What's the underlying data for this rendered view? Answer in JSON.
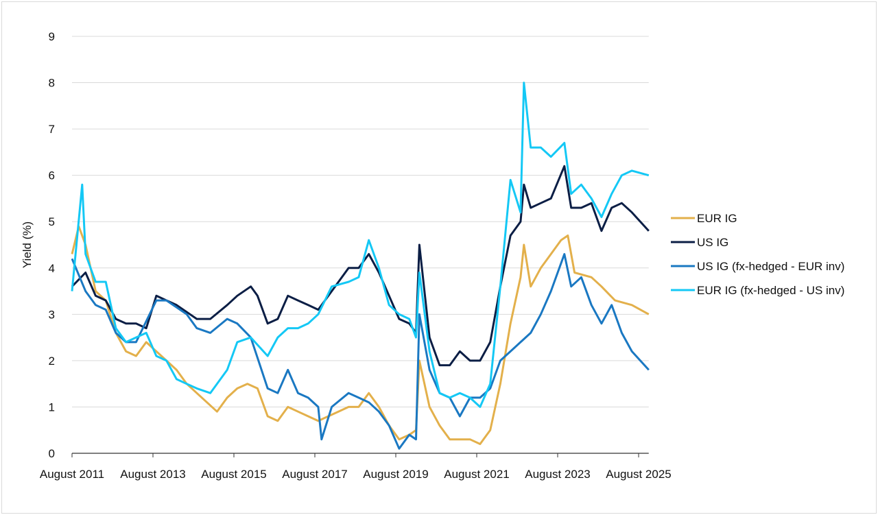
{
  "chart_data": {
    "type": "line",
    "title": "",
    "xlabel": "",
    "ylabel": "Yield (%)",
    "ylim": [
      0,
      9
    ],
    "yticks": [
      "0",
      "1",
      "2",
      "3",
      "4",
      "5",
      "6",
      "7",
      "8",
      "9"
    ],
    "xticks": [
      {
        "date": "2011-08",
        "label": "August 2011"
      },
      {
        "date": "2013-08",
        "label": "August 2013"
      },
      {
        "date": "2015-08",
        "label": "August 2015"
      },
      {
        "date": "2017-08",
        "label": "August 2017"
      },
      {
        "date": "2019-08",
        "label": "August 2019"
      },
      {
        "date": "2021-08",
        "label": "August 2021"
      },
      {
        "date": "2023-08",
        "label": "August 2023"
      },
      {
        "date": "2025-08",
        "label": "August 2025"
      }
    ],
    "xlim": [
      "2011-08",
      "2025-11"
    ],
    "grid": "horizontal",
    "legend": "right",
    "series": [
      {
        "name": "EUR IG",
        "color": "#E3B04B",
        "points": [
          [
            "2011-08",
            4.3
          ],
          [
            "2011-10",
            4.9
          ],
          [
            "2011-12",
            4.5
          ],
          [
            "2012-03",
            3.5
          ],
          [
            "2012-06",
            3.3
          ],
          [
            "2012-09",
            2.6
          ],
          [
            "2012-12",
            2.2
          ],
          [
            "2013-03",
            2.1
          ],
          [
            "2013-06",
            2.4
          ],
          [
            "2013-09",
            2.2
          ],
          [
            "2013-12",
            2.0
          ],
          [
            "2014-03",
            1.8
          ],
          [
            "2014-06",
            1.5
          ],
          [
            "2014-09",
            1.3
          ],
          [
            "2015-03",
            0.9
          ],
          [
            "2015-06",
            1.2
          ],
          [
            "2015-09",
            1.4
          ],
          [
            "2015-12",
            1.5
          ],
          [
            "2016-03",
            1.4
          ],
          [
            "2016-06",
            0.8
          ],
          [
            "2016-09",
            0.7
          ],
          [
            "2016-12",
            1.0
          ],
          [
            "2017-03",
            0.9
          ],
          [
            "2017-06",
            0.8
          ],
          [
            "2017-09",
            0.7
          ],
          [
            "2018-03",
            0.9
          ],
          [
            "2018-06",
            1.0
          ],
          [
            "2018-09",
            1.0
          ],
          [
            "2018-12",
            1.3
          ],
          [
            "2019-03",
            1.0
          ],
          [
            "2019-06",
            0.6
          ],
          [
            "2019-09",
            0.3
          ],
          [
            "2019-12",
            0.4
          ],
          [
            "2020-02",
            0.5
          ],
          [
            "2020-03",
            2.0
          ],
          [
            "2020-06",
            1.0
          ],
          [
            "2020-09",
            0.6
          ],
          [
            "2020-12",
            0.3
          ],
          [
            "2021-03",
            0.3
          ],
          [
            "2021-06",
            0.3
          ],
          [
            "2021-09",
            0.2
          ],
          [
            "2021-12",
            0.5
          ],
          [
            "2022-03",
            1.5
          ],
          [
            "2022-06",
            2.8
          ],
          [
            "2022-09",
            3.8
          ],
          [
            "2022-10",
            4.5
          ],
          [
            "2022-12",
            3.6
          ],
          [
            "2023-03",
            4.0
          ],
          [
            "2023-06",
            4.3
          ],
          [
            "2023-09",
            4.6
          ],
          [
            "2023-11",
            4.7
          ],
          [
            "2024-01",
            3.9
          ],
          [
            "2024-06",
            3.8
          ],
          [
            "2024-09",
            3.6
          ],
          [
            "2025-01",
            3.3
          ],
          [
            "2025-06",
            3.2
          ],
          [
            "2025-11",
            3.0
          ]
        ]
      },
      {
        "name": "US IG",
        "color": "#0B1E45",
        "points": [
          [
            "2011-08",
            3.6
          ],
          [
            "2011-12",
            3.9
          ],
          [
            "2012-03",
            3.4
          ],
          [
            "2012-06",
            3.3
          ],
          [
            "2012-09",
            2.9
          ],
          [
            "2012-12",
            2.8
          ],
          [
            "2013-03",
            2.8
          ],
          [
            "2013-06",
            2.7
          ],
          [
            "2013-09",
            3.4
          ],
          [
            "2013-12",
            3.3
          ],
          [
            "2014-03",
            3.2
          ],
          [
            "2014-09",
            2.9
          ],
          [
            "2015-01",
            2.9
          ],
          [
            "2015-06",
            3.2
          ],
          [
            "2015-09",
            3.4
          ],
          [
            "2016-01",
            3.6
          ],
          [
            "2016-03",
            3.4
          ],
          [
            "2016-06",
            2.8
          ],
          [
            "2016-09",
            2.9
          ],
          [
            "2016-12",
            3.4
          ],
          [
            "2017-03",
            3.3
          ],
          [
            "2017-06",
            3.2
          ],
          [
            "2017-09",
            3.1
          ],
          [
            "2018-01",
            3.5
          ],
          [
            "2018-06",
            4.0
          ],
          [
            "2018-09",
            4.0
          ],
          [
            "2018-12",
            4.3
          ],
          [
            "2019-03",
            3.9
          ],
          [
            "2019-06",
            3.4
          ],
          [
            "2019-09",
            2.9
          ],
          [
            "2019-12",
            2.8
          ],
          [
            "2020-02",
            2.6
          ],
          [
            "2020-03",
            4.5
          ],
          [
            "2020-06",
            2.5
          ],
          [
            "2020-09",
            1.9
          ],
          [
            "2020-12",
            1.9
          ],
          [
            "2021-03",
            2.2
          ],
          [
            "2021-06",
            2.0
          ],
          [
            "2021-09",
            2.0
          ],
          [
            "2021-12",
            2.4
          ],
          [
            "2022-03",
            3.6
          ],
          [
            "2022-06",
            4.7
          ],
          [
            "2022-09",
            5.0
          ],
          [
            "2022-10",
            5.8
          ],
          [
            "2022-12",
            5.3
          ],
          [
            "2023-03",
            5.4
          ],
          [
            "2023-06",
            5.5
          ],
          [
            "2023-10",
            6.2
          ],
          [
            "2023-12",
            5.3
          ],
          [
            "2024-03",
            5.3
          ],
          [
            "2024-06",
            5.4
          ],
          [
            "2024-09",
            4.8
          ],
          [
            "2024-12",
            5.3
          ],
          [
            "2025-03",
            5.4
          ],
          [
            "2025-06",
            5.2
          ],
          [
            "2025-11",
            4.8
          ]
        ]
      },
      {
        "name": "US IG (fx-hedged - EUR inv)",
        "color": "#1A78C2",
        "points": [
          [
            "2011-08",
            4.2
          ],
          [
            "2011-12",
            3.5
          ],
          [
            "2012-03",
            3.2
          ],
          [
            "2012-06",
            3.1
          ],
          [
            "2012-09",
            2.6
          ],
          [
            "2012-12",
            2.4
          ],
          [
            "2013-03",
            2.4
          ],
          [
            "2013-09",
            3.3
          ],
          [
            "2013-12",
            3.3
          ],
          [
            "2014-06",
            3.0
          ],
          [
            "2014-09",
            2.7
          ],
          [
            "2015-01",
            2.6
          ],
          [
            "2015-06",
            2.9
          ],
          [
            "2015-09",
            2.8
          ],
          [
            "2016-01",
            2.5
          ],
          [
            "2016-06",
            1.4
          ],
          [
            "2016-09",
            1.3
          ],
          [
            "2016-12",
            1.8
          ],
          [
            "2017-03",
            1.3
          ],
          [
            "2017-06",
            1.2
          ],
          [
            "2017-09",
            1.0
          ],
          [
            "2017-10",
            0.3
          ],
          [
            "2018-01",
            1.0
          ],
          [
            "2018-06",
            1.3
          ],
          [
            "2018-09",
            1.2
          ],
          [
            "2018-12",
            1.1
          ],
          [
            "2019-03",
            0.9
          ],
          [
            "2019-06",
            0.6
          ],
          [
            "2019-09",
            0.1
          ],
          [
            "2019-12",
            0.4
          ],
          [
            "2020-02",
            0.3
          ],
          [
            "2020-03",
            3.0
          ],
          [
            "2020-06",
            1.8
          ],
          [
            "2020-09",
            1.3
          ],
          [
            "2020-12",
            1.2
          ],
          [
            "2021-03",
            0.8
          ],
          [
            "2021-06",
            1.2
          ],
          [
            "2021-09",
            1.2
          ],
          [
            "2021-12",
            1.4
          ],
          [
            "2022-03",
            2.0
          ],
          [
            "2022-06",
            2.2
          ],
          [
            "2022-09",
            2.4
          ],
          [
            "2022-12",
            2.6
          ],
          [
            "2023-03",
            3.0
          ],
          [
            "2023-06",
            3.5
          ],
          [
            "2023-10",
            4.3
          ],
          [
            "2023-12",
            3.6
          ],
          [
            "2024-03",
            3.8
          ],
          [
            "2024-06",
            3.2
          ],
          [
            "2024-09",
            2.8
          ],
          [
            "2024-12",
            3.2
          ],
          [
            "2025-03",
            2.6
          ],
          [
            "2025-06",
            2.2
          ],
          [
            "2025-11",
            1.8
          ]
        ]
      },
      {
        "name": "EUR IG (fx-hedged - US inv)",
        "color": "#14C8F5",
        "points": [
          [
            "2011-08",
            3.5
          ],
          [
            "2011-11",
            5.8
          ],
          [
            "2011-12",
            4.3
          ],
          [
            "2012-03",
            3.7
          ],
          [
            "2012-06",
            3.7
          ],
          [
            "2012-09",
            2.7
          ],
          [
            "2012-12",
            2.4
          ],
          [
            "2013-03",
            2.5
          ],
          [
            "2013-06",
            2.6
          ],
          [
            "2013-09",
            2.1
          ],
          [
            "2013-12",
            2.0
          ],
          [
            "2014-03",
            1.6
          ],
          [
            "2014-06",
            1.5
          ],
          [
            "2014-09",
            1.4
          ],
          [
            "2015-01",
            1.3
          ],
          [
            "2015-06",
            1.8
          ],
          [
            "2015-09",
            2.4
          ],
          [
            "2016-01",
            2.5
          ],
          [
            "2016-06",
            2.1
          ],
          [
            "2016-09",
            2.5
          ],
          [
            "2016-12",
            2.7
          ],
          [
            "2017-03",
            2.7
          ],
          [
            "2017-06",
            2.8
          ],
          [
            "2017-09",
            3.0
          ],
          [
            "2018-01",
            3.6
          ],
          [
            "2018-06",
            3.7
          ],
          [
            "2018-09",
            3.8
          ],
          [
            "2018-12",
            4.6
          ],
          [
            "2019-03",
            4.0
          ],
          [
            "2019-06",
            3.2
          ],
          [
            "2019-09",
            3.0
          ],
          [
            "2019-12",
            2.9
          ],
          [
            "2020-02",
            2.5
          ],
          [
            "2020-03",
            3.9
          ],
          [
            "2020-06",
            2.2
          ],
          [
            "2020-09",
            1.3
          ],
          [
            "2020-12",
            1.2
          ],
          [
            "2021-03",
            1.3
          ],
          [
            "2021-06",
            1.2
          ],
          [
            "2021-09",
            1.0
          ],
          [
            "2021-12",
            1.5
          ],
          [
            "2022-03",
            3.6
          ],
          [
            "2022-06",
            5.9
          ],
          [
            "2022-09",
            5.2
          ],
          [
            "2022-10",
            8.0
          ],
          [
            "2022-12",
            6.6
          ],
          [
            "2023-03",
            6.6
          ],
          [
            "2023-06",
            6.4
          ],
          [
            "2023-10",
            6.7
          ],
          [
            "2023-12",
            5.6
          ],
          [
            "2024-03",
            5.8
          ],
          [
            "2024-06",
            5.5
          ],
          [
            "2024-09",
            5.1
          ],
          [
            "2024-12",
            5.6
          ],
          [
            "2025-03",
            6.0
          ],
          [
            "2025-06",
            6.1
          ],
          [
            "2025-11",
            6.0
          ]
        ]
      }
    ]
  }
}
